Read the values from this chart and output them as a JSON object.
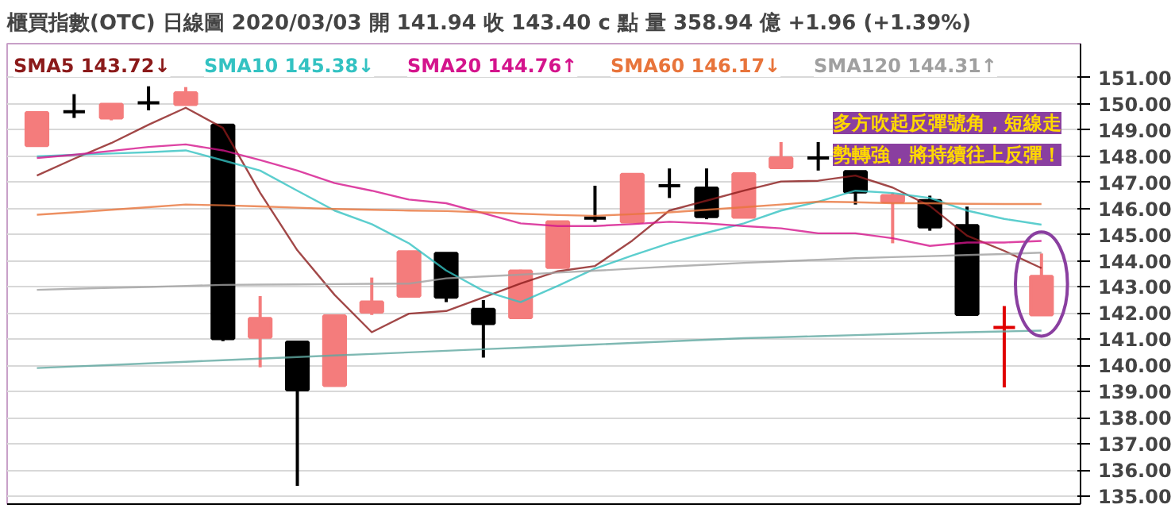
{
  "chart_data": {
    "type": "candlestick",
    "title": "櫃買指數(OTC)   日線圖   2020/03/03   開 141.94   收 143.40 c 點   量 358.94 億   +1.96 (+1.39%)",
    "categories": [
      null,
      null,
      null,
      null,
      null,
      null,
      null,
      null,
      null,
      null,
      null,
      null,
      null,
      null,
      null,
      null,
      null,
      null,
      null,
      null,
      null,
      null,
      null,
      null,
      null,
      null,
      null,
      null
    ],
    "ohlc": [
      [
        148.41,
        149.66,
        148.41,
        149.66
      ],
      [
        149.7,
        150.37,
        149.46,
        149.7
      ],
      [
        149.46,
        149.98,
        149.37,
        149.98
      ],
      [
        150.04,
        150.67,
        149.75,
        150.04
      ],
      [
        149.98,
        150.64,
        149.98,
        150.42
      ],
      [
        149.18,
        149.18,
        140.93,
        141.03
      ],
      [
        141.08,
        142.65,
        139.93,
        141.79
      ],
      [
        140.89,
        140.89,
        135.4,
        139.07
      ],
      [
        139.24,
        141.89,
        139.24,
        141.89
      ],
      [
        142.04,
        143.36,
        141.93,
        142.42
      ],
      [
        142.65,
        144.34,
        142.65,
        144.34
      ],
      [
        144.28,
        144.28,
        142.42,
        142.61
      ],
      [
        142.14,
        142.5,
        140.3,
        141.6
      ],
      [
        141.83,
        143.66,
        141.83,
        143.61
      ],
      [
        143.75,
        145.49,
        143.75,
        145.49
      ],
      [
        145.63,
        146.87,
        145.49,
        145.63
      ],
      [
        145.49,
        147.3,
        145.49,
        147.3
      ],
      [
        146.87,
        147.53,
        146.4,
        146.87
      ],
      [
        146.78,
        147.53,
        145.59,
        145.69
      ],
      [
        145.67,
        147.38,
        145.67,
        147.32
      ],
      [
        147.57,
        148.54,
        147.57,
        147.93
      ],
      [
        147.93,
        148.54,
        147.45,
        147.93
      ],
      [
        147.41,
        147.41,
        146.15,
        146.63
      ],
      [
        146.26,
        146.59,
        144.67,
        146.49
      ],
      [
        146.3,
        146.49,
        145.15,
        145.3
      ],
      [
        145.34,
        146.07,
        141.89,
        141.95
      ],
      [
        141.45,
        142.27,
        139.16,
        141.45
      ],
      [
        141.94,
        144.28,
        141.94,
        143.4
      ]
    ],
    "colors": [
      "#f47c7c",
      "#000000",
      "#f47c7c",
      "#000000",
      "#f47c7c",
      "#000000",
      "#f47c7c",
      "#000000",
      "#f47c7c",
      "#f47c7c",
      "#f47c7c",
      "#000000",
      "#000000",
      "#f47c7c",
      "#f47c7c",
      "#000000",
      "#f47c7c",
      "#000000",
      "#000000",
      "#f47c7c",
      "#f47c7c",
      "#000000",
      "#000000",
      "#f47c7c",
      "#000000",
      "#000000",
      "#e00000",
      "#f47c7c"
    ],
    "series": [
      {
        "type": "line",
        "name": "SMA5 143.72↓",
        "color": "#8b1a1a",
        "values": [
          147.26,
          147.9,
          148.5,
          149.2,
          149.85,
          149.08,
          146.6,
          144.4,
          142.7,
          141.27,
          141.98,
          142.08,
          142.6,
          143.13,
          143.6,
          143.8,
          144.77,
          145.92,
          146.3,
          146.68,
          147.03,
          147.06,
          147.26,
          146.8,
          146.1,
          144.96,
          144.38,
          143.72
        ]
      },
      {
        "type": "line",
        "name": "SMA10 145.38↓",
        "color": "#33c2c2",
        "values": [
          147.99,
          148.05,
          148.1,
          148.15,
          148.22,
          147.84,
          147.45,
          146.68,
          145.92,
          145.4,
          144.67,
          143.63,
          142.85,
          142.42,
          143.04,
          143.7,
          144.2,
          144.67,
          145.07,
          145.43,
          145.92,
          146.26,
          146.68,
          146.59,
          146.4,
          145.92,
          145.6,
          145.38
        ]
      },
      {
        "type": "line",
        "name": "SMA20 144.76↑",
        "color": "#d4148c",
        "values": [
          147.93,
          148.05,
          148.2,
          148.35,
          148.45,
          148.22,
          147.85,
          147.45,
          146.97,
          146.68,
          146.34,
          146.2,
          145.82,
          145.43,
          145.33,
          145.33,
          145.4,
          145.49,
          145.43,
          145.33,
          145.24,
          145.05,
          145.05,
          144.86,
          144.57,
          144.7,
          144.7,
          144.76
        ]
      },
      {
        "type": "line",
        "name": "SMA60 146.17↓",
        "color": "#e8743b",
        "values": [
          145.76,
          145.85,
          145.95,
          146.05,
          146.15,
          146.12,
          146.08,
          146.03,
          145.98,
          145.95,
          145.92,
          145.9,
          145.85,
          145.8,
          145.75,
          145.72,
          145.78,
          145.85,
          145.95,
          146.05,
          146.15,
          146.26,
          146.24,
          146.2,
          146.2,
          146.18,
          146.17,
          146.17
        ]
      },
      {
        "type": "line",
        "name": "SMA120 144.31↑",
        "color": "#a0a0a0",
        "values": [
          142.89,
          142.93,
          142.97,
          143.0,
          143.04,
          143.08,
          143.09,
          143.1,
          143.11,
          143.12,
          143.13,
          143.33,
          143.4,
          143.47,
          143.55,
          143.62,
          143.7,
          143.78,
          143.85,
          143.92,
          143.98,
          144.04,
          144.1,
          144.14,
          144.18,
          144.22,
          144.26,
          144.31
        ]
      },
      {
        "type": "line",
        "color": "#5fa8a0",
        "values": [
          139.9,
          139.96,
          140.02,
          140.08,
          140.14,
          140.2,
          140.26,
          140.32,
          140.38,
          140.44,
          140.5,
          140.56,
          140.62,
          140.68,
          140.74,
          140.8,
          140.86,
          140.92,
          140.98,
          141.04,
          141.08,
          141.12,
          141.16,
          141.2,
          141.24,
          141.27,
          141.3,
          141.33
        ]
      }
    ],
    "annotations": [
      "多方吹起反彈號角，短線走勢轉強，將持續往上反彈！"
    ],
    "ylim": [
      134.7,
      152.3
    ],
    "yticks": [
      {
        "value": 135,
        "label": "135.00"
      },
      {
        "value": 136,
        "label": "136.00"
      },
      {
        "value": 137,
        "label": "137.00"
      },
      {
        "value": 138,
        "label": "138.00"
      },
      {
        "value": 139,
        "label": "139.00"
      },
      {
        "value": 140,
        "label": "140.00"
      },
      {
        "value": 141,
        "label": "141.00"
      },
      {
        "value": 142,
        "label": "142.00"
      },
      {
        "value": 143,
        "label": "143.00"
      },
      {
        "value": 144,
        "label": "144.00"
      },
      {
        "value": 145,
        "label": "145.00"
      },
      {
        "value": 146,
        "label": "146.00"
      },
      {
        "value": 147,
        "label": "147.00"
      },
      {
        "value": 148,
        "label": "148.00"
      },
      {
        "value": 149,
        "label": "149.00"
      },
      {
        "value": 150,
        "label": "150.00"
      },
      {
        "value": 151,
        "label": "151.00"
      }
    ],
    "grid": "y",
    "legend": "top left",
    "tick_labels": "y"
  }
}
